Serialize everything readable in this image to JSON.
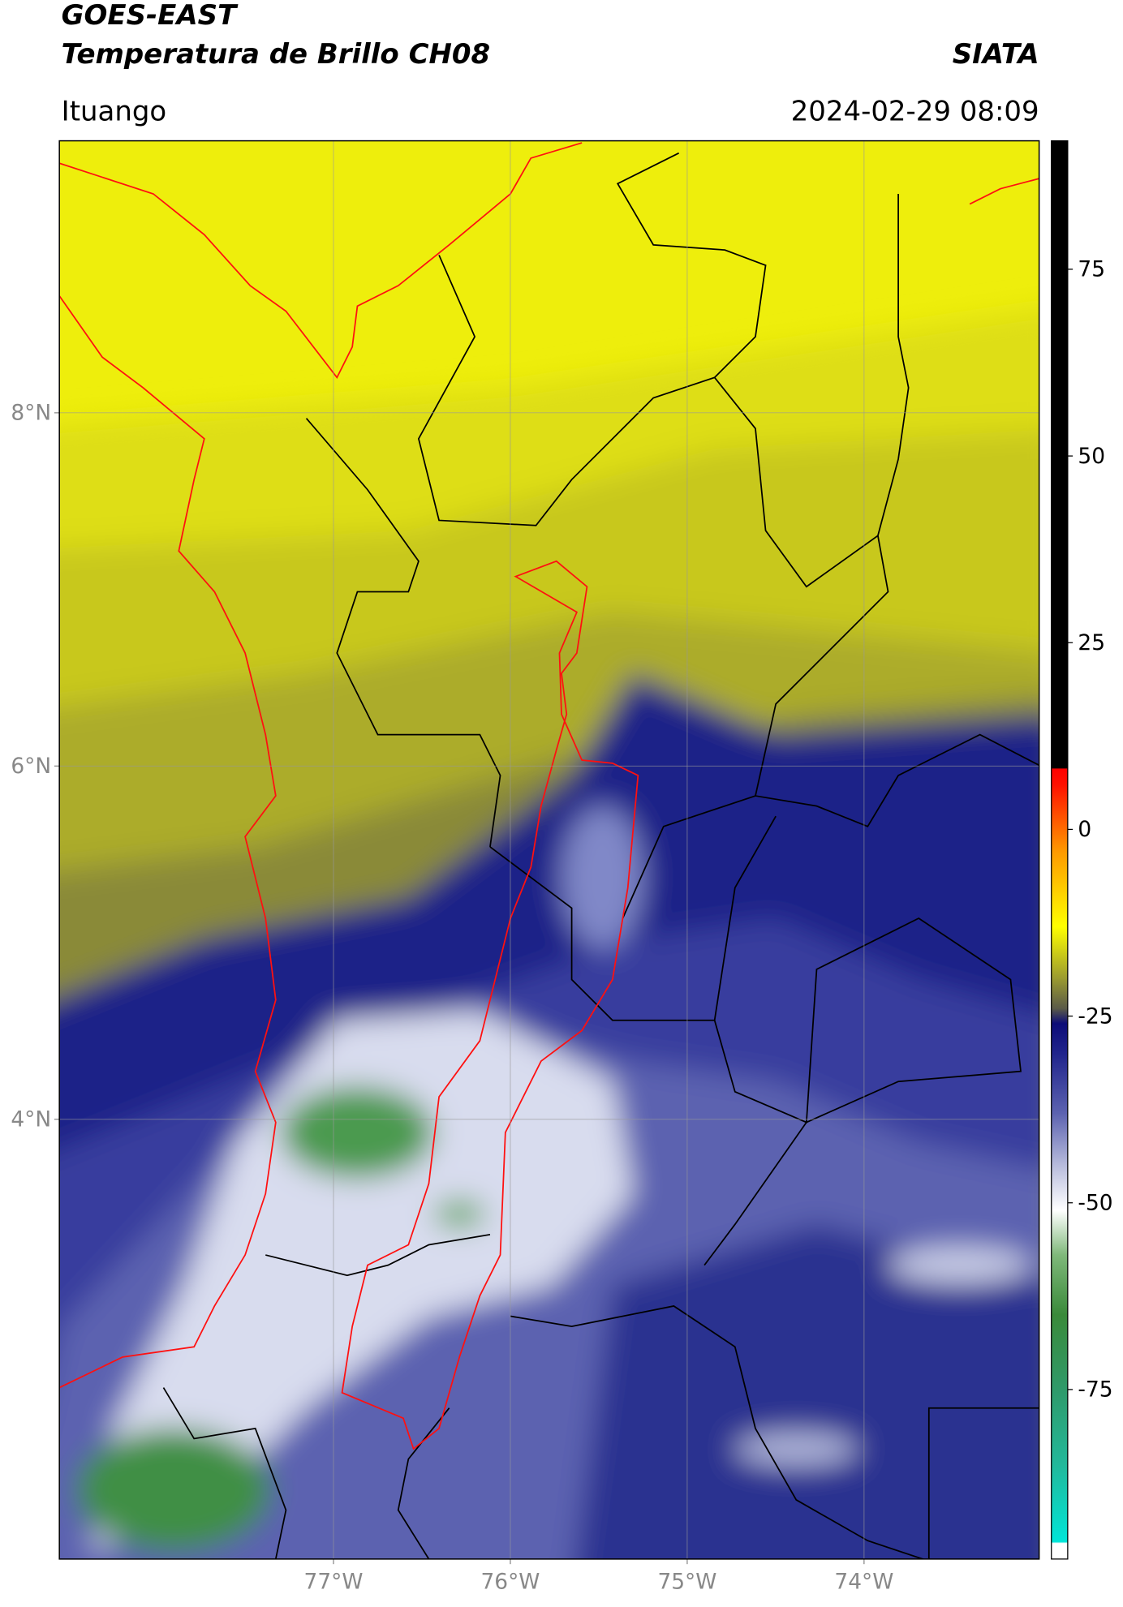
{
  "header": {
    "title": "GOES-EAST",
    "subtitle": "Temperatura de Brillo CH08",
    "source": "SIATA",
    "location": "Ituango",
    "datetime": "2024-02-29 08:09"
  },
  "map": {
    "lon_range": [
      -78.55,
      -73.01
    ],
    "lat_range": [
      1.51,
      9.54
    ],
    "lat_ticks": [
      {
        "value": 8,
        "label": "8°N"
      },
      {
        "value": 6,
        "label": "6°N"
      },
      {
        "value": 4,
        "label": "4°N"
      }
    ],
    "lon_ticks": [
      {
        "value": -77,
        "label": "77°W"
      },
      {
        "value": -76,
        "label": "76°W"
      },
      {
        "value": -75,
        "label": "75°W"
      },
      {
        "value": -74,
        "label": "74°W"
      }
    ],
    "grid": true
  },
  "colorbar": {
    "range": [
      -97.7,
      92.2
    ],
    "ticks": [
      75,
      50,
      25,
      0,
      -25,
      -50,
      -75
    ],
    "colormap": [
      {
        "value": -97.7,
        "color": "#ffffff"
      },
      {
        "value": -95.6,
        "color": "#ffffff"
      },
      {
        "value": -95.4,
        "color": "#00e5d8"
      },
      {
        "value": -85,
        "color": "#22b89a"
      },
      {
        "value": -75,
        "color": "#2f9a6a"
      },
      {
        "value": -65,
        "color": "#3a8a3a"
      },
      {
        "value": -57,
        "color": "#7fb87a"
      },
      {
        "value": -51,
        "color": "#ffffff"
      },
      {
        "value": -45,
        "color": "#b8bcdc"
      },
      {
        "value": -38,
        "color": "#5c62b0"
      },
      {
        "value": -30,
        "color": "#20248c"
      },
      {
        "value": -26,
        "color": "#0c0c78"
      },
      {
        "value": -24,
        "color": "#5a5a48"
      },
      {
        "value": -20,
        "color": "#9a9a30"
      },
      {
        "value": -13,
        "color": "#ffff00"
      },
      {
        "value": -3,
        "color": "#ff9a00"
      },
      {
        "value": 6,
        "color": "#ff1000"
      },
      {
        "value": 8.1,
        "color": "#ff0000"
      },
      {
        "value": 8.2,
        "color": "#000000"
      },
      {
        "value": 92.2,
        "color": "#000000"
      }
    ]
  }
}
